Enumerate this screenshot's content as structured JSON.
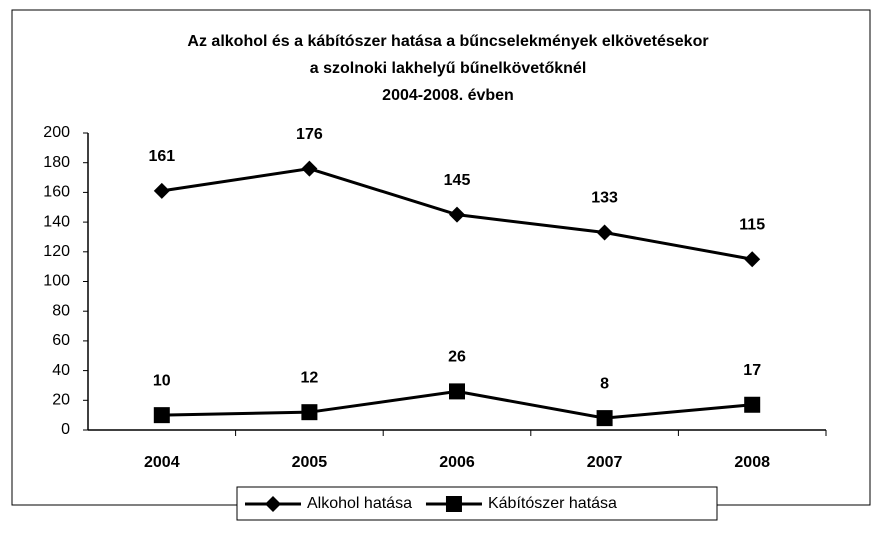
{
  "chart_data": {
    "type": "line",
    "title": [
      "Az alkohol és a kábítószer hatása a bűncselekmények elkövetésekor",
      "a szolnoki lakhelyű bűnelkövetőknél",
      "2004-2008. évben"
    ],
    "categories": [
      "2004",
      "2005",
      "2006",
      "2007",
      "2008"
    ],
    "series": [
      {
        "name": "Alkohol hatása",
        "color": "#000000",
        "marker": "diamond",
        "values": [
          161,
          176,
          145,
          133,
          115
        ]
      },
      {
        "name": "Kábítószer hatása",
        "color": "#000000",
        "marker": "square",
        "values": [
          10,
          12,
          26,
          8,
          17
        ]
      }
    ],
    "ylim": [
      0,
      200
    ],
    "yticks": [
      0,
      20,
      40,
      60,
      80,
      100,
      120,
      140,
      160,
      180,
      200
    ],
    "legend": "bottom",
    "grid": false
  }
}
